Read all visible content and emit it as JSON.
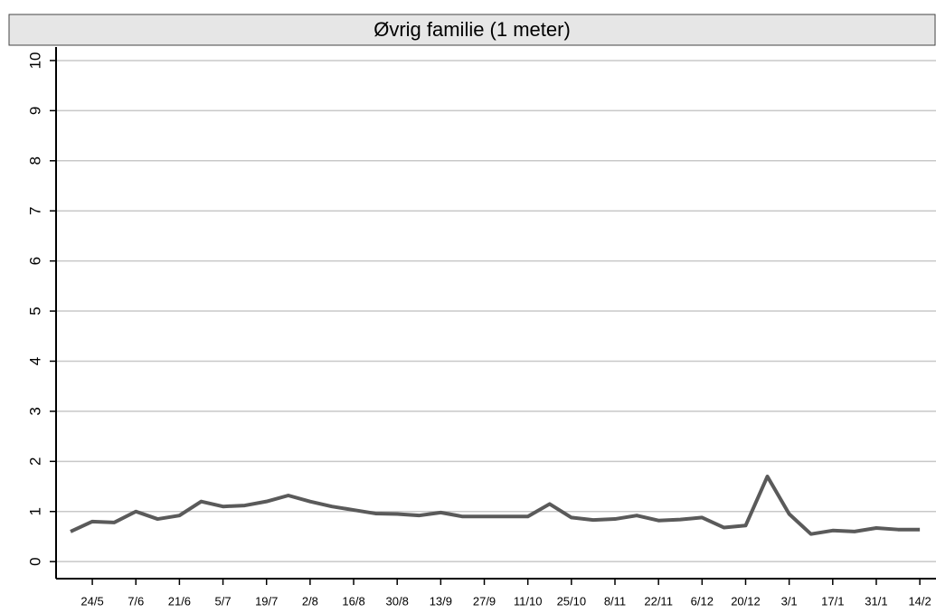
{
  "chart_data": {
    "type": "line",
    "title": "Øvrig familie (1 meter)",
    "categories": [
      null,
      "24/5",
      null,
      "7/6",
      null,
      "21/6",
      null,
      "5/7",
      null,
      "19/7",
      null,
      "2/8",
      null,
      "16/8",
      null,
      "30/8",
      null,
      "13/9",
      null,
      "27/9",
      null,
      "11/10",
      null,
      "25/10",
      null,
      "8/11",
      null,
      "22/11",
      null,
      "6/12",
      null,
      "20/12",
      null,
      "3/1",
      null,
      "17/1",
      null,
      "31/1",
      null,
      "14/2"
    ],
    "series": [
      {
        "color": "#5a5a5a",
        "values": [
          0.6,
          0.8,
          0.78,
          1.0,
          0.85,
          0.92,
          1.2,
          1.1,
          1.12,
          1.2,
          1.32,
          1.2,
          1.1,
          1.03,
          0.96,
          0.95,
          0.92,
          0.98,
          0.9,
          0.9,
          0.9,
          0.9,
          1.15,
          0.88,
          0.83,
          0.85,
          0.92,
          0.82,
          0.84,
          0.88,
          0.68,
          0.72,
          1.7,
          0.95,
          0.55,
          0.62,
          0.6,
          0.67,
          0.64,
          0.64
        ]
      }
    ],
    "ylim": [
      -0.34,
      10.27
    ],
    "yticks": [
      0,
      1,
      2,
      3,
      4,
      5,
      6,
      7,
      8,
      9,
      10
    ],
    "grid": true
  }
}
